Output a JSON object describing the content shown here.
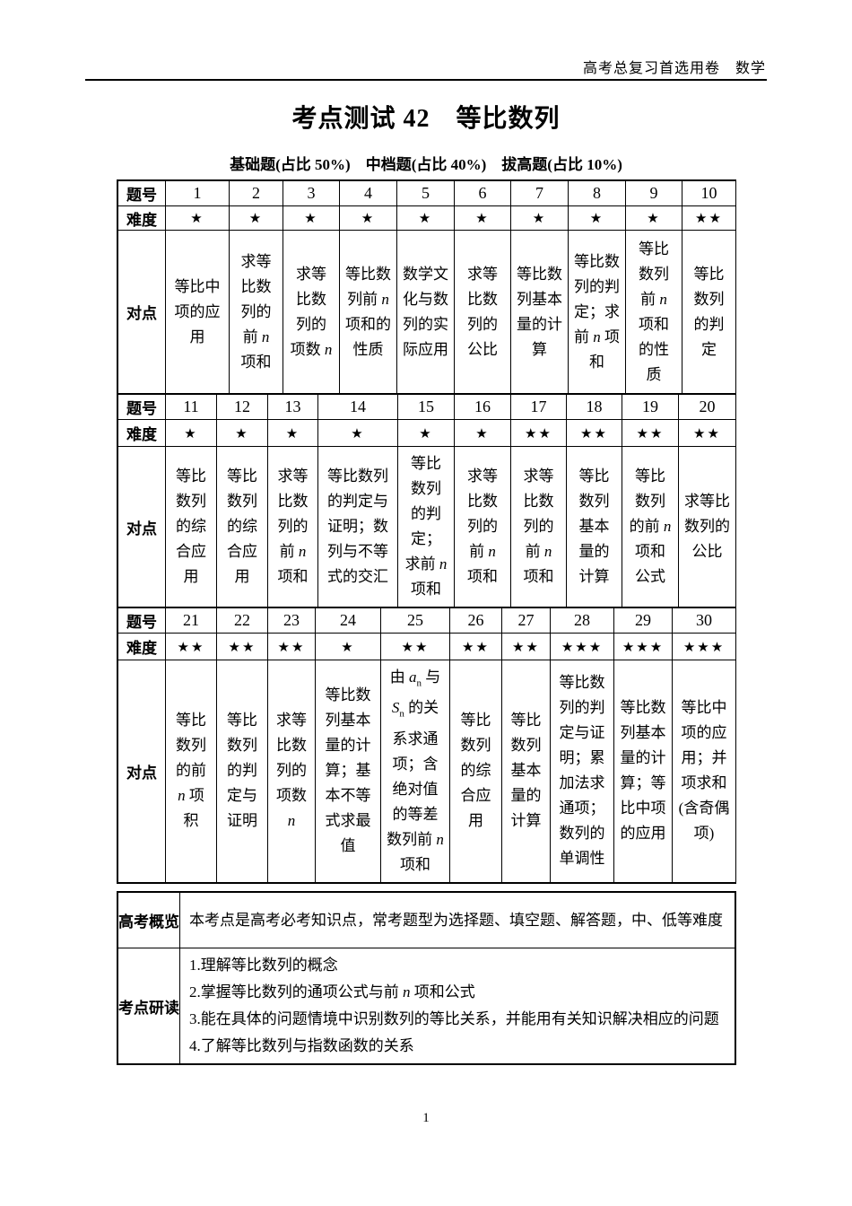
{
  "colors": {
    "text": "#000000",
    "background": "#ffffff",
    "border": "#000000"
  },
  "page": {
    "header_right": "高考总复习首选用卷　数学",
    "title": "考点测试 42　等比数列",
    "subtitle": "基础题(占比 50%)　中档题(占比 40%)　拔高题(占比 10%)",
    "page_number": "1"
  },
  "table": {
    "row_labels": {
      "number": "题号",
      "difficulty": "难度",
      "topic": "对点"
    },
    "sections": [
      {
        "numbers": [
          "1",
          "2",
          "3",
          "4",
          "5",
          "6",
          "7",
          "8",
          "9",
          "10"
        ],
        "difficulties": [
          "★",
          "★",
          "★",
          "★",
          "★",
          "★",
          "★",
          "★",
          "★",
          "★★"
        ],
        "topics": [
          "等比中项的应用",
          "求等比数列的前 <i>n</i> 项和",
          "求等比数列的项数 <i>n</i>",
          "等比数列前 <i>n</i> 项和的性质",
          "数学文化与数列的实际应用",
          "求等比数列的公比",
          "等比数列基本量的计算",
          "等比数列的判定；求前 <i>n</i> 项和",
          "等比数列前 <i>n</i> 项和的性质",
          "等比数列的判定"
        ]
      },
      {
        "numbers": [
          "11",
          "12",
          "13",
          "14",
          "15",
          "16",
          "17",
          "18",
          "19",
          "20"
        ],
        "difficulties": [
          "★",
          "★",
          "★",
          "★",
          "★",
          "★",
          "★★",
          "★★",
          "★★",
          "★★"
        ],
        "topics": [
          "等比数列的综合应用",
          "等比数列的综合应用",
          "求等比数列的前 <i>n</i> 项和",
          "等比数列的判定与证明；数列与不等式的交汇",
          "等比数列的判定；求前 <i>n</i> 项和",
          "求等比数列的前 <i>n</i> 项和",
          "求等比数列的前 <i>n</i> 项和",
          "等比数列基本量的计算",
          "等比数列的前 <i>n</i> 项和公式",
          "求等比数列的公比"
        ]
      },
      {
        "numbers": [
          "21",
          "22",
          "23",
          "24",
          "25",
          "26",
          "27",
          "28",
          "29",
          "30"
        ],
        "difficulties": [
          "★★",
          "★★",
          "★★",
          "★",
          "★★",
          "★★",
          "★★",
          "★★★",
          "★★★",
          "★★★"
        ],
        "topics": [
          "等比数列的前 <i>n</i> 项积",
          "等比数列的判定与证明",
          "求等比数列的项数 <i>n</i>",
          "等比数列基本量的计算；基本不等式求最值",
          "由 <i>a</i><sub>n</sub> 与 <i>S</i><sub>n</sub> 的关系求通项；含绝对值的等差数列前 <i>n</i> 项和",
          "等比数列的综合应用",
          "等比数列基本量的计算",
          "等比数列的判定与证明；累加法求通项；数列的单调性",
          "等比数列基本量的计算；等比中项的应用",
          "等比中项的应用；并项求和(含奇偶项)"
        ]
      }
    ]
  },
  "info": {
    "overview_label": "高考概览",
    "overview_text": "本考点是高考必考知识点，常考题型为选择题、填空题、解答题，中、低等难度",
    "study_label": "考点研读",
    "study_items": [
      "1.理解等比数列的概念",
      "2.掌握等比数列的通项公式与前 <i>n</i> 项和公式",
      "3.能在具体的问题情境中识别数列的等比关系，并能用有关知识解决相应的问题",
      "4.了解等比数列与指数函数的关系"
    ]
  }
}
